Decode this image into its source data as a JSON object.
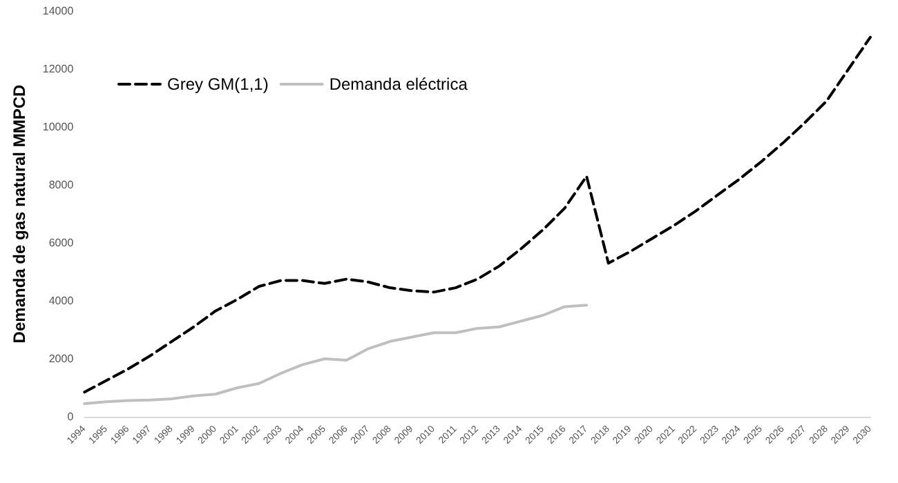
{
  "chart_data": {
    "type": "line",
    "ylabel": "Demanda de gas natural MMPCD",
    "categories": [
      "1994",
      "1995",
      "1996",
      "1997",
      "1998",
      "1999",
      "2000",
      "2001",
      "2002",
      "2003",
      "2004",
      "2005",
      "2006",
      "2007",
      "2008",
      "2009",
      "2010",
      "2011",
      "2012",
      "2013",
      "2014",
      "2015",
      "2016",
      "2017",
      "2018",
      "2019",
      "2020",
      "2021",
      "2022",
      "2023",
      "2024",
      "2025",
      "2026",
      "2027",
      "2028",
      "2029",
      "2030"
    ],
    "series": [
      {
        "name": "Grey GM(1,1)",
        "color": "#000000",
        "line_style": "dashed",
        "values": [
          850,
          1250,
          1650,
          2100,
          2600,
          3100,
          3650,
          4050,
          4500,
          4700,
          4700,
          4600,
          4750,
          4650,
          4450,
          4350,
          4300,
          4450,
          4750,
          5200,
          5800,
          6450,
          7200,
          8300,
          5300,
          5700,
          6150,
          6600,
          7100,
          7650,
          8200,
          8800,
          9450,
          10150,
          10900,
          12000,
          13100
        ]
      },
      {
        "name": "Demanda eléctrica",
        "color": "#bfbfbf",
        "line_style": "solid",
        "values": [
          450,
          520,
          560,
          580,
          620,
          720,
          780,
          1000,
          1150,
          1500,
          1800,
          2000,
          1950,
          2350,
          2600,
          2750,
          2900,
          2900,
          3050,
          3100,
          3300,
          3500,
          3800,
          3850,
          null,
          null,
          null,
          null,
          null,
          null,
          null,
          null,
          null,
          null,
          null,
          null,
          null
        ]
      }
    ],
    "ylim": [
      0,
      14000
    ],
    "yticks": [
      0,
      2000,
      4000,
      6000,
      8000,
      10000,
      12000,
      14000
    ],
    "grid": false,
    "legend": "top left",
    "marker": "none"
  }
}
